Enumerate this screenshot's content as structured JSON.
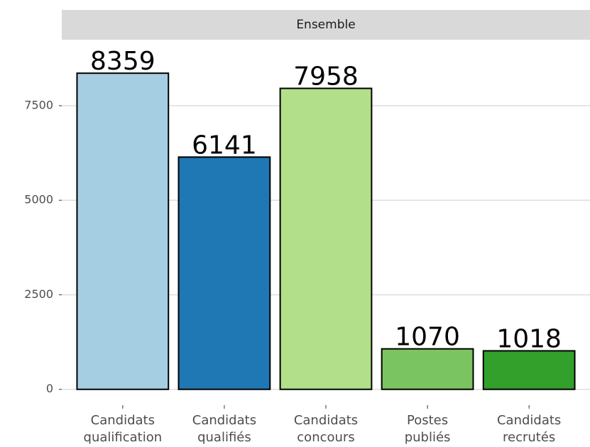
{
  "chart_data": {
    "type": "bar",
    "strip": "Ensemble",
    "categories": [
      "Candidats qualification",
      "Candidats qualifiés",
      "Candidats concours",
      "Postes publiés",
      "Candidats recrutés"
    ],
    "values": [
      8359,
      6141,
      7958,
      1070,
      1018
    ],
    "colors": [
      "#a6cee3",
      "#1f78b4",
      "#b2df8a",
      "#7bc462",
      "#33a02c"
    ],
    "ylim": [
      -418,
      9244
    ],
    "yticks": [
      0,
      2500,
      5000,
      7500
    ],
    "grid": true
  }
}
